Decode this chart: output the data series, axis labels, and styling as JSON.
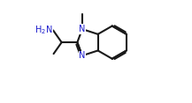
{
  "bg": "#ffffff",
  "bc": "#1a1a1a",
  "nc": "#1a1acc",
  "lw": 1.5,
  "dbo": 0.015,
  "fs": 7.0,
  "fig_w": 2.17,
  "fig_h": 1.17,
  "dpi": 100,
  "xlim": [
    -0.05,
    1.05
  ],
  "ylim": [
    -0.05,
    1.05
  ],
  "bl": 0.175
}
